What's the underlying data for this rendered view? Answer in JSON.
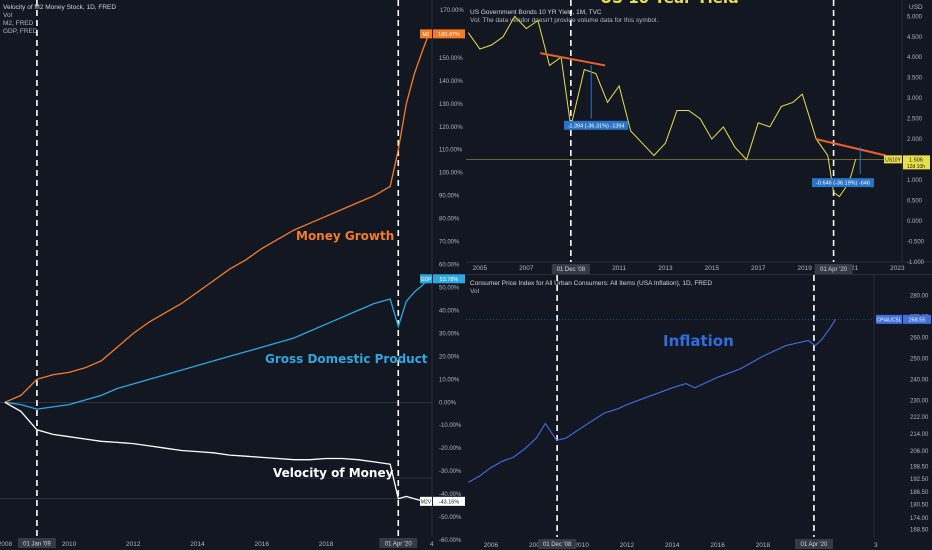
{
  "colors": {
    "bg": "#131722",
    "m2": "#f57c27",
    "gdp": "#2ea8e0",
    "velocity": "#ffffff",
    "yield": "#e8e04a",
    "cpi": "#3f6fe0",
    "trend": "#e8622a",
    "measure": "#2a74c8",
    "grid": "#1f2430",
    "text": "#b2b5be"
  },
  "left_panel": {
    "header": [
      "Velocity of M2 Money Stock, 1D, FRED",
      "Vol",
      "M2, FRED",
      "GDP, FRED"
    ],
    "annotations": {
      "money": "Money Growth",
      "gdp": "Gross Domestic Product",
      "velocity": "Velocity of Money"
    },
    "y_ticks": [
      "160.00%",
      "150.00%",
      "140.00%",
      "130.00%",
      "120.00%",
      "110.00%",
      "100.00%",
      "90.00%",
      "80.00%",
      "70.00%",
      "60.00%",
      "50.00%",
      "40.00%",
      "30.00%",
      "20.00%",
      "10.00%",
      "0.00%",
      "-10.00%",
      "-20.00%",
      "-30.00%",
      "-40.00%",
      "-50.00%",
      "-60.00%"
    ],
    "x_ticks": [
      "2008",
      "2010",
      "2012",
      "2014",
      "2016",
      "2018"
    ],
    "x_edge_label": "4",
    "date_markers": [
      "01 Jan '09",
      "01 Apr '20"
    ],
    "top_axis_label": "170.00%",
    "last_values": {
      "m2": "160.47%",
      "gdp": "53.78%",
      "velocity": "-43.16%"
    },
    "value_tags": {
      "m2": "M2",
      "gdp": "GDP",
      "velocity": "M2V"
    }
  },
  "right_top_panel": {
    "header": [
      "US Government Bonds 10 YR Yield, 1M, TVC",
      "Vol: The data vendor doesn't provide volume data for this symbol."
    ],
    "overlay_title": "US 10 Year Yield",
    "currency": "USD",
    "y_ticks": [
      "5.000",
      "4.500",
      "4.000",
      "3.500",
      "3.000",
      "2.500",
      "2.000",
      "1.500",
      "1.000",
      "0.500",
      "0.000",
      "-0.500",
      "-1.000"
    ],
    "x_ticks": [
      "2005",
      "2007",
      "2009",
      "2011",
      "2013",
      "2015",
      "2017",
      "2019",
      "2021",
      "2023"
    ],
    "date_markers": [
      "01 Dec '08",
      "01 Apr '20"
    ],
    "measure_labels": [
      "-1.394 (-36.31%) -1394",
      "-0.646 (-36.19%) -646"
    ],
    "last_value": {
      "tag": "US10Y",
      "value": "1.506",
      "countdown": "12d 10h"
    }
  },
  "right_bottom_panel": {
    "header": [
      "Consumer Price Index for All Urban Consumers: All Items (USA Inflation), 1D, FRED",
      "Vol"
    ],
    "annotation": "Inflation",
    "y_ticks": [
      "280.00",
      "270.00",
      "260.00",
      "250.00",
      "240.00",
      "230.00",
      "222.00",
      "214.00",
      "206.00",
      "198.50",
      "192.50",
      "186.50",
      "180.50",
      "174.00",
      "168.50"
    ],
    "x_ticks": [
      "2006",
      "2008",
      "2010",
      "2012",
      "2014",
      "2016",
      "2018",
      "2020"
    ],
    "x_edge_label": "3",
    "date_markers": [
      "01 Dec '08",
      "01 Apr '20"
    ],
    "last_value": {
      "tag": "CPIAUCSL",
      "value": "268.55"
    }
  },
  "chart_data": [
    {
      "type": "line",
      "title": "Velocity of M2 Money Stock, 1D, FRED",
      "x": [
        2008.0,
        2008.5,
        2009.0,
        2009.5,
        2010.0,
        2010.5,
        2011.0,
        2011.5,
        2012.0,
        2012.5,
        2013.0,
        2013.5,
        2014.0,
        2014.5,
        2015.0,
        2015.5,
        2016.0,
        2016.5,
        2017.0,
        2017.5,
        2018.0,
        2018.5,
        2019.0,
        2019.5,
        2020.0,
        2020.25,
        2020.5,
        2020.75,
        2021.0,
        2021.2
      ],
      "series": [
        {
          "name": "M2",
          "values": [
            0,
            3,
            10,
            12,
            13,
            15,
            18,
            24,
            30,
            35,
            39,
            43,
            48,
            53,
            58,
            62,
            67,
            71,
            75,
            78,
            81,
            84,
            87,
            90,
            94,
            110,
            130,
            143,
            153,
            160.47
          ]
        },
        {
          "name": "GDP",
          "values": [
            0,
            -1,
            -3,
            -2,
            -1,
            1,
            3,
            6,
            8,
            10,
            12,
            14,
            16,
            18,
            20,
            22,
            24,
            26,
            28,
            31,
            34,
            37,
            40,
            43,
            45,
            33,
            44,
            48,
            51,
            53.78
          ]
        },
        {
          "name": "M2V",
          "values": [
            0,
            -4,
            -12,
            -14,
            -15,
            -16,
            -17,
            -17.5,
            -18,
            -19,
            -20,
            -21,
            -21.5,
            -22,
            -23,
            -23.5,
            -24,
            -24.5,
            -25,
            -25,
            -24.5,
            -24.5,
            -25,
            -26,
            -27,
            -42,
            -41,
            -42,
            -43,
            -43.16
          ]
        }
      ],
      "ylim": [
        -60,
        170
      ],
      "xlim": [
        2007.85,
        2021.3
      ]
    },
    {
      "type": "line",
      "title": "US Government Bonds 10 YR Yield, 1M, TVC",
      "x": [
        2004.5,
        2005,
        2005.5,
        2006,
        2006.5,
        2007,
        2007.5,
        2008,
        2008.5,
        2008.92,
        2009.5,
        2010,
        2010.5,
        2011,
        2011.5,
        2012,
        2012.5,
        2013,
        2013.5,
        2014,
        2014.5,
        2015,
        2015.5,
        2016,
        2016.5,
        2017,
        2017.5,
        2018,
        2018.5,
        2018.9,
        2019.5,
        2020.0,
        2020.25,
        2020.5,
        2020.75,
        2021.0,
        2021.2
      ],
      "series": [
        {
          "name": "US10Y",
          "values": [
            4.6,
            4.2,
            4.3,
            4.5,
            5.0,
            4.7,
            4.9,
            3.8,
            4.0,
            2.3,
            3.7,
            3.6,
            2.9,
            3.3,
            2.2,
            1.9,
            1.6,
            1.9,
            2.7,
            2.7,
            2.5,
            2.0,
            2.3,
            1.8,
            1.5,
            2.4,
            2.3,
            2.8,
            2.9,
            3.1,
            2.0,
            1.6,
            0.7,
            0.6,
            0.8,
            1.1,
            1.506
          ]
        }
      ],
      "ylim": [
        -1.0,
        5.3
      ],
      "xlim": [
        2004.4,
        2023.2
      ]
    },
    {
      "type": "line",
      "title": "Consumer Price Index for All Urban Consumers: All Items (USA Inflation), 1D, FRED",
      "x": [
        2005.0,
        2005.5,
        2006,
        2006.5,
        2007,
        2007.5,
        2008,
        2008.4,
        2008.9,
        2009.3,
        2010,
        2011,
        2011.6,
        2012,
        2013,
        2014,
        2014.6,
        2015,
        2016,
        2017,
        2018,
        2019,
        2020.0,
        2020.3,
        2020.6,
        2021.0,
        2021.2
      ],
      "series": [
        {
          "name": "CPIAUCSL",
          "values": [
            191,
            194,
            198,
            201,
            203,
            207,
            212,
            219,
            211,
            212,
            217,
            224,
            226,
            228,
            232,
            236,
            238,
            236,
            241,
            245,
            251,
            256,
            258.5,
            256,
            259,
            265,
            268.55
          ]
        }
      ],
      "ylim": [
        165,
        283
      ],
      "xlim": [
        2004.9,
        2022.9
      ]
    }
  ]
}
